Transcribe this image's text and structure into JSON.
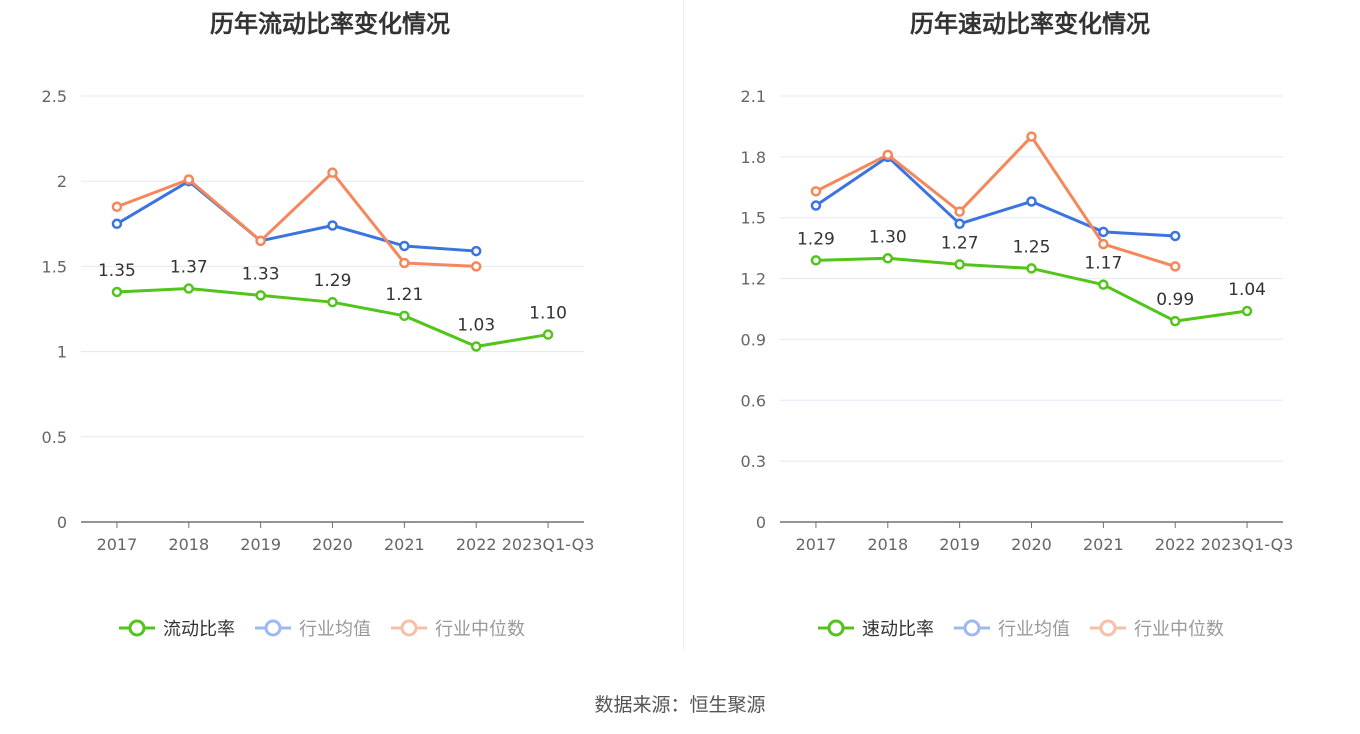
{
  "footer": {
    "source": "数据来源：恒生聚源"
  },
  "legend_left": [
    "流动比率",
    "行业均值",
    "行业中位数"
  ],
  "legend_right": [
    "速动比率",
    "行业均值",
    "行业中位数"
  ],
  "colors": {
    "main": "#52c41a",
    "avg": "#3b74e0",
    "median": "#f5875a",
    "grid": "#e3e8f5",
    "axis": "#6e7079"
  },
  "chart_data": [
    {
      "type": "line",
      "title": "历年流动比率变化情况",
      "categories": [
        "2017",
        "2018",
        "2019",
        "2020",
        "2021",
        "2022",
        "2023Q1-Q3"
      ],
      "ylim": [
        0,
        2.5
      ],
      "yticks": [
        "0",
        "0.5",
        "1",
        "1.5",
        "2",
        "2.5"
      ],
      "ytick_values": [
        0,
        0.5,
        1,
        1.5,
        2,
        2.5
      ],
      "grid": true,
      "legend": "bottom-center",
      "series": [
        {
          "name": "流动比率",
          "key": "main",
          "values": [
            1.35,
            1.37,
            1.33,
            1.29,
            1.21,
            1.03,
            1.1
          ],
          "labels": [
            "1.35",
            "1.37",
            "1.33",
            "1.29",
            "1.21",
            "1.03",
            "1.10"
          ]
        },
        {
          "name": "行业均值",
          "key": "avg",
          "values": [
            1.75,
            2.0,
            1.65,
            1.74,
            1.62,
            1.59,
            null
          ]
        },
        {
          "name": "行业中位数",
          "key": "median",
          "values": [
            1.85,
            2.01,
            1.65,
            2.05,
            1.52,
            1.5,
            null
          ]
        }
      ]
    },
    {
      "type": "line",
      "title": "历年速动比率变化情况",
      "categories": [
        "2017",
        "2018",
        "2019",
        "2020",
        "2021",
        "2022",
        "2023Q1-Q3"
      ],
      "ylim": [
        0,
        2.1
      ],
      "yticks": [
        "0",
        "0.3",
        "0.6",
        "0.9",
        "1.2",
        "1.5",
        "1.8",
        "2.1"
      ],
      "ytick_values": [
        0,
        0.3,
        0.6,
        0.9,
        1.2,
        1.5,
        1.8,
        2.1
      ],
      "grid": true,
      "legend": "bottom-center",
      "series": [
        {
          "name": "速动比率",
          "key": "main",
          "values": [
            1.29,
            1.3,
            1.27,
            1.25,
            1.17,
            0.99,
            1.04
          ],
          "labels": [
            "1.29",
            "1.30",
            "1.27",
            "1.25",
            "1.17",
            "0.99",
            "1.04"
          ]
        },
        {
          "name": "行业均值",
          "key": "avg",
          "values": [
            1.56,
            1.8,
            1.47,
            1.58,
            1.43,
            1.41,
            null
          ]
        },
        {
          "name": "行业中位数",
          "key": "median",
          "values": [
            1.63,
            1.81,
            1.53,
            1.9,
            1.37,
            1.26,
            null
          ]
        }
      ]
    }
  ]
}
